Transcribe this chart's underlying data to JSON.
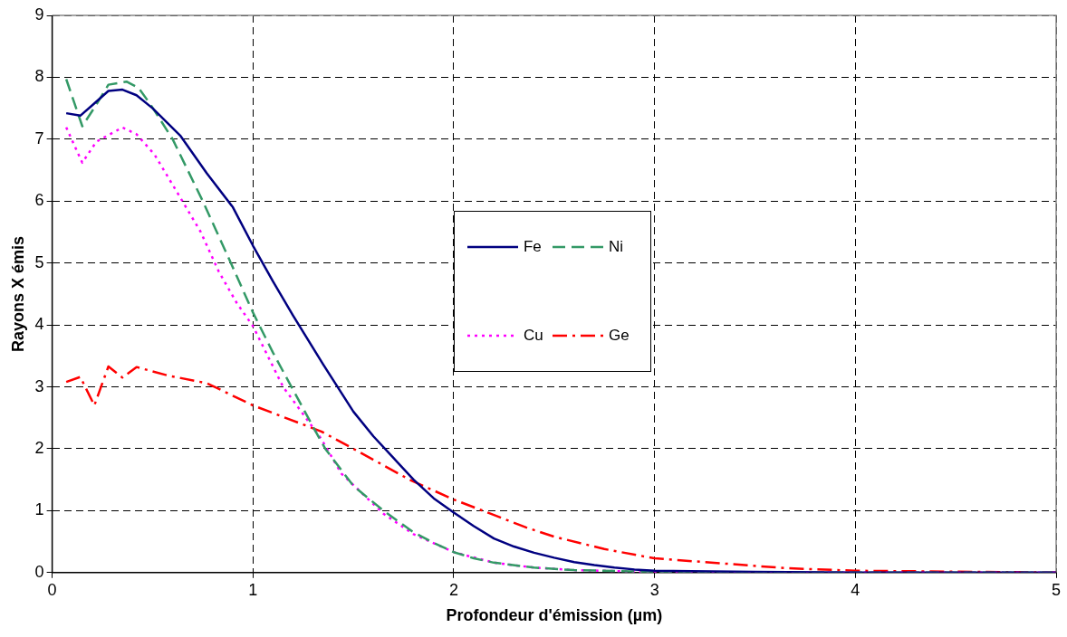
{
  "chart_data": {
    "type": "line",
    "xlabel": "Profondeur d'émission (µm)",
    "ylabel": "Rayons X émis",
    "xlim": [
      0,
      5
    ],
    "xticks": [
      0,
      1,
      2,
      3,
      4,
      5
    ],
    "ylim": [
      0,
      9
    ],
    "yticks": [
      0,
      1,
      2,
      3,
      4,
      5,
      6,
      7,
      8,
      9
    ],
    "grid": true,
    "legend": "center",
    "marker": "none",
    "series": [
      {
        "name": "Fe",
        "color": "#000080",
        "line_style": "solid",
        "x": [
          0.07,
          0.14,
          0.2,
          0.28,
          0.35,
          0.42,
          0.5,
          0.64,
          0.77,
          0.9,
          1.0,
          1.1,
          1.2,
          1.35,
          1.5,
          1.6,
          1.7,
          1.8,
          1.9,
          2.0,
          2.1,
          2.2,
          2.3,
          2.4,
          2.5,
          2.6,
          2.7,
          2.8,
          2.9,
          3.0,
          3.5,
          4.0,
          5.0
        ],
        "values": [
          7.42,
          7.38,
          7.55,
          7.78,
          7.8,
          7.71,
          7.5,
          7.05,
          6.45,
          5.9,
          5.28,
          4.7,
          4.15,
          3.36,
          2.6,
          2.2,
          1.85,
          1.5,
          1.2,
          0.97,
          0.75,
          0.55,
          0.42,
          0.32,
          0.24,
          0.17,
          0.12,
          0.08,
          0.05,
          0.03,
          0.01,
          0,
          0
        ]
      },
      {
        "name": "Ni",
        "color": "#339966",
        "line_style": "dashed",
        "x": [
          0.07,
          0.15,
          0.22,
          0.28,
          0.37,
          0.43,
          0.49,
          0.6,
          0.75,
          0.89,
          1.0,
          1.1,
          1.2,
          1.3,
          1.36,
          1.5,
          1.65,
          1.8,
          1.9,
          2.0,
          2.1,
          2.2,
          2.4,
          2.6,
          3.0,
          4.0,
          5.0
        ],
        "values": [
          7.97,
          7.21,
          7.56,
          7.88,
          7.93,
          7.83,
          7.56,
          7.0,
          6.0,
          5.0,
          4.2,
          3.55,
          2.95,
          2.35,
          2.0,
          1.4,
          1.0,
          0.65,
          0.48,
          0.33,
          0.23,
          0.16,
          0.08,
          0.04,
          0.01,
          0,
          0
        ]
      },
      {
        "name": "Cu",
        "color": "#ff00ff",
        "line_style": "dotted",
        "x": [
          0.07,
          0.15,
          0.22,
          0.35,
          0.42,
          0.51,
          0.63,
          0.74,
          0.83,
          0.92,
          1.0,
          1.15,
          1.34,
          1.44,
          1.55,
          1.65,
          1.8,
          2.0,
          2.2,
          2.4,
          2.6,
          3.0,
          4.0,
          5.0
        ],
        "values": [
          7.19,
          6.62,
          6.96,
          7.19,
          7.08,
          6.75,
          6.1,
          5.5,
          4.86,
          4.35,
          3.98,
          3.0,
          2.16,
          1.6,
          1.26,
          0.95,
          0.62,
          0.33,
          0.16,
          0.08,
          0.04,
          0.01,
          0,
          0
        ]
      },
      {
        "name": "Ge",
        "color": "#ff0000",
        "line_style": "dashdot",
        "x": [
          0.07,
          0.14,
          0.21,
          0.28,
          0.35,
          0.42,
          0.58,
          0.77,
          1.0,
          1.34,
          1.5,
          1.78,
          2.0,
          2.36,
          2.5,
          2.75,
          3.0,
          3.66,
          4.0,
          5.0
        ],
        "values": [
          3.08,
          3.16,
          2.7,
          3.33,
          3.15,
          3.32,
          3.18,
          3.06,
          2.7,
          2.28,
          2.0,
          1.5,
          1.18,
          0.73,
          0.58,
          0.38,
          0.23,
          0.07,
          0.03,
          0
        ]
      }
    ]
  }
}
